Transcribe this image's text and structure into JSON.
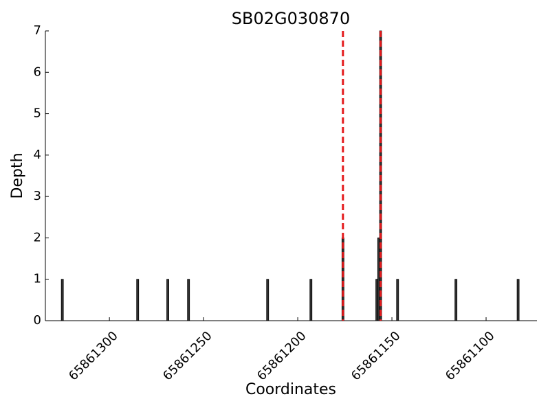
{
  "chart_data": {
    "type": "bar",
    "title": "SB02G030870",
    "xlabel": "Coordinates",
    "ylabel": "Depth",
    "x": [
      65861325,
      65861285,
      65861269,
      65861258,
      65861216,
      65861193,
      65861176,
      65861158,
      65861157,
      65861156,
      65861147,
      65861116,
      65861083
    ],
    "values": [
      1,
      1,
      1,
      1,
      1,
      1,
      2,
      1,
      2,
      7,
      1,
      1,
      1
    ],
    "color": "#333333",
    "xlim": [
      65861334,
      65861073
    ],
    "xticks": [
      65861300,
      65861250,
      65861200,
      65861150,
      65861100
    ],
    "ylim": [
      0,
      7
    ],
    "yticks": [
      0,
      1,
      2,
      3,
      4,
      5,
      6,
      7
    ],
    "vlines": [
      {
        "x": 65861176,
        "color": "#e41a1c"
      },
      {
        "x": 65861156,
        "color": "#e41a1c"
      }
    ]
  }
}
